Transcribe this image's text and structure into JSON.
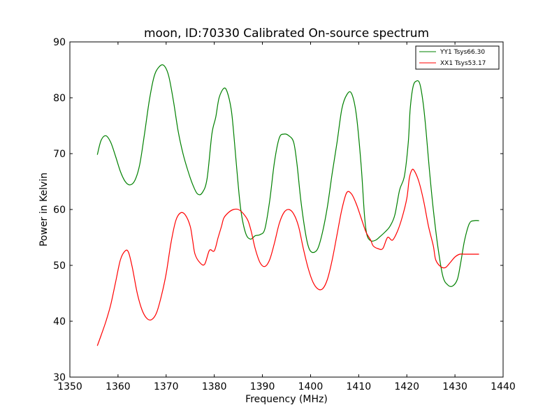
{
  "chart_data": {
    "type": "line",
    "title": "moon, ID:70330 Calibrated On-source spectrum",
    "xlabel": "Frequency (MHz)",
    "ylabel": "Power in Kelvin",
    "xlim": [
      1350,
      1440
    ],
    "ylim": [
      30,
      90
    ],
    "xticks": [
      1350,
      1360,
      1370,
      1380,
      1390,
      1400,
      1410,
      1420,
      1430,
      1440
    ],
    "yticks": [
      30,
      40,
      50,
      60,
      70,
      80,
      90
    ],
    "grid": false,
    "legend": "top-right",
    "series": [
      {
        "name": "YY1 Tsys66.30",
        "color": "#008000",
        "x": [
          1355.7,
          1356.5,
          1357.5,
          1358.5,
          1359.5,
          1360.5,
          1361.5,
          1362.5,
          1363.5,
          1364.5,
          1365.5,
          1366.5,
          1367.5,
          1368.5,
          1369.5,
          1370.5,
          1371.5,
          1372.5,
          1373.5,
          1374.5,
          1375.5,
          1376.5,
          1377.5,
          1378.5,
          1379.5,
          1380.3,
          1381.0,
          1382.0,
          1382.7,
          1383.5,
          1384.0,
          1384.7,
          1385.5,
          1386.5,
          1387.5,
          1388.5,
          1389.5,
          1390.5,
          1391.5,
          1392.5,
          1393.5,
          1394.5,
          1395.5,
          1396.5,
          1397.2,
          1398.0,
          1399.0,
          1399.7,
          1400.5,
          1401.5,
          1402.5,
          1403.5,
          1404.5,
          1405.5,
          1406.5,
          1407.5,
          1408.5,
          1409.5,
          1410.5,
          1411.2,
          1411.7,
          1412.5,
          1413.5,
          1414.5,
          1415.5,
          1416.5,
          1417.5,
          1418.5,
          1419.5,
          1420.3,
          1420.7,
          1421.3,
          1422.0,
          1422.7,
          1423.4,
          1424.0,
          1424.7,
          1425.5,
          1426.5,
          1427.5,
          1428.5,
          1429.5,
          1430.5,
          1431.2,
          1432.0,
          1433.0,
          1434.0,
          1435.0
        ],
        "y": [
          69.8,
          72.4,
          73.2,
          72.0,
          69.5,
          66.8,
          65.0,
          64.4,
          65.2,
          68.0,
          73.5,
          79.5,
          83.8,
          85.5,
          85.8,
          84.0,
          79.5,
          74.0,
          70.0,
          67.0,
          64.5,
          62.8,
          63.0,
          65.5,
          73.5,
          76.5,
          80.0,
          81.7,
          81.0,
          78.0,
          74.0,
          67.0,
          60.0,
          55.8,
          54.7,
          55.3,
          55.5,
          56.5,
          61.5,
          68.5,
          72.8,
          73.5,
          73.2,
          72.0,
          68.0,
          61.5,
          55.5,
          53.0,
          52.3,
          53.0,
          56.0,
          60.5,
          66.5,
          72.0,
          78.0,
          80.5,
          80.8,
          77.0,
          68.0,
          59.0,
          55.5,
          54.4,
          54.5,
          55.2,
          56.0,
          57.0,
          59.0,
          63.5,
          66.0,
          72.0,
          78.0,
          82.0,
          83.0,
          82.5,
          79.0,
          74.0,
          67.0,
          60.0,
          53.0,
          48.0,
          46.5,
          46.3,
          47.5,
          50.5,
          54.5,
          57.5,
          58.0,
          58.0
        ],
        "x_full": true
      },
      {
        "name": "XX1 Tsys53.17",
        "color": "#ff0000",
        "x": [
          1355.7,
          1356.5,
          1357.5,
          1358.5,
          1359.5,
          1360.5,
          1361.5,
          1362.2,
          1363.0,
          1364.0,
          1365.0,
          1366.0,
          1367.0,
          1368.0,
          1369.0,
          1370.0,
          1371.0,
          1372.0,
          1373.0,
          1374.0,
          1375.0,
          1375.5,
          1376.0,
          1377.0,
          1378.0,
          1379.0,
          1380.0,
          1380.8,
          1381.5,
          1382.0,
          1383.0,
          1384.0,
          1385.0,
          1386.0,
          1387.0,
          1387.7,
          1388.5,
          1389.5,
          1390.5,
          1391.5,
          1392.5,
          1393.5,
          1394.5,
          1395.5,
          1396.5,
          1397.5,
          1398.5,
          1399.5,
          1400.5,
          1401.5,
          1402.5,
          1403.5,
          1404.5,
          1405.5,
          1406.5,
          1407.5,
          1408.5,
          1409.5,
          1410.5,
          1411.5,
          1412.5,
          1413.0,
          1414.0,
          1415.0,
          1416.0,
          1417.0,
          1418.0,
          1419.0,
          1420.0,
          1420.5,
          1421.0,
          1421.5,
          1422.5,
          1423.5,
          1424.5,
          1425.5,
          1426.0,
          1427.0,
          1428.0,
          1429.0,
          1430.0,
          1431.0,
          1432.0,
          1433.0,
          1434.0,
          1435.0
        ],
        "y": [
          35.6,
          37.5,
          40.0,
          43.0,
          47.0,
          51.0,
          52.6,
          52.3,
          49.5,
          45.0,
          42.0,
          40.5,
          40.3,
          41.5,
          44.5,
          48.5,
          54.0,
          58.0,
          59.4,
          59.0,
          57.0,
          54.5,
          52.0,
          50.5,
          50.2,
          52.7,
          52.6,
          55.0,
          57.0,
          58.5,
          59.5,
          60.0,
          60.0,
          59.3,
          58.0,
          56.0,
          53.0,
          50.5,
          49.8,
          51.0,
          54.0,
          57.5,
          59.5,
          60.0,
          59.2,
          57.0,
          53.0,
          49.5,
          47.0,
          45.8,
          45.8,
          47.5,
          51.0,
          55.5,
          60.0,
          63.0,
          62.8,
          61.0,
          58.5,
          56.0,
          54.5,
          53.5,
          53.0,
          53.0,
          55.0,
          54.5,
          56.0,
          58.5,
          62.0,
          65.5,
          67.0,
          67.0,
          65.0,
          61.5,
          57.0,
          53.5,
          51.0,
          49.8,
          49.6,
          50.5,
          51.5,
          52.0,
          52.0,
          52.0,
          52.0,
          52.0
        ]
      }
    ]
  }
}
